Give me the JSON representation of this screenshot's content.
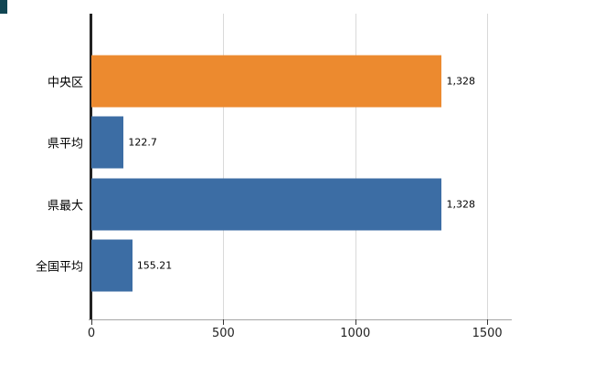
{
  "chart_data": {
    "type": "bar",
    "orientation": "horizontal",
    "title": "",
    "legend": "none",
    "grid": "vertical",
    "categories": [
      "中央区",
      "県平均",
      "県最大",
      "全国平均"
    ],
    "series": [
      {
        "name": "value",
        "values": [
          1328,
          122.7,
          1328,
          155.21
        ]
      }
    ],
    "value_labels": [
      "1,328",
      "122.7",
      "1,328",
      "155.21"
    ],
    "bar_colors": [
      "#EC8A2F",
      "#3C6DA4",
      "#3C6DA4",
      "#3C6DA4"
    ],
    "x_axis": {
      "min": 0,
      "max": 1593,
      "ticks": [
        0,
        500,
        1000,
        1500
      ],
      "tick_labels": [
        "0",
        "500",
        "1000",
        "1500"
      ]
    }
  },
  "style": {
    "background": "#FFFFFF",
    "bar_orange": "#EC8A2F",
    "bar_blue": "#3C6DA4",
    "gridline": "#D9D9D9",
    "y_axis_line": "#222222",
    "x_axis_line": "#A6A6A6",
    "tick": "#333333",
    "corner_mark": "#114653",
    "text": "#000000"
  }
}
